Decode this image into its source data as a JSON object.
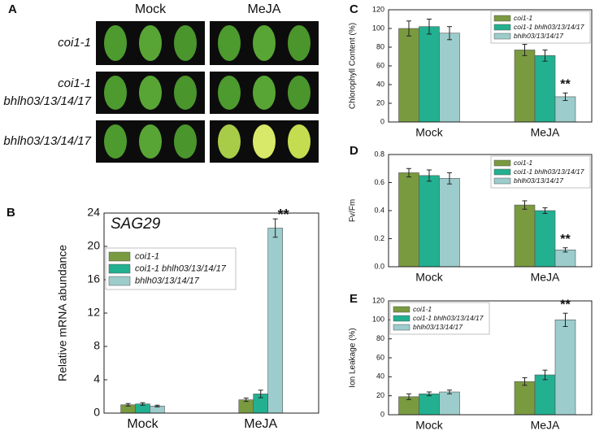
{
  "photo_panel": {
    "panel_label": "A",
    "columns": [
      "Mock",
      "MeJA"
    ],
    "rows": [
      [
        "coi1-1"
      ],
      [
        "coi1-1",
        "bhlh03/13/14/17"
      ],
      [
        "bhlh03/13/14/17"
      ]
    ]
  },
  "chart_data": [
    {
      "type": "bar",
      "panel_label": "B",
      "title": "SAG29",
      "y_label": "Relative mRNA abundance",
      "annotation": "**",
      "categories": [
        "Mock",
        "MeJA"
      ],
      "ylim": [
        0,
        24
      ],
      "yticks": [
        0,
        4,
        8,
        12,
        16,
        20,
        24
      ],
      "legend": "middle left",
      "series": [
        {
          "name": "coi1-1",
          "color": "#7a9a3f",
          "values": [
            1.0,
            1.6
          ],
          "errors": [
            0.15,
            0.2
          ]
        },
        {
          "name": "coi1-1 bhlh03/13/14/17",
          "color": "#22b090",
          "values": [
            1.1,
            2.3
          ],
          "errors": [
            0.15,
            0.45
          ]
        },
        {
          "name": "bhlh03/13/14/17",
          "color": "#9ccccc",
          "values": [
            0.85,
            22.2
          ],
          "errors": [
            0.1,
            1.1
          ]
        }
      ]
    },
    {
      "type": "bar",
      "panel_label": "C",
      "y_label": "Chlorophyll Content (%)",
      "annotation": "**",
      "categories": [
        "Mock",
        "MeJA"
      ],
      "ylim": [
        0,
        120
      ],
      "yticks": [
        0,
        20,
        40,
        60,
        80,
        100,
        120
      ],
      "legend": "upper right",
      "series": [
        {
          "name": "coi1-1",
          "color": "#7a9a3f",
          "values": [
            100,
            77
          ],
          "errors": [
            8,
            6
          ]
        },
        {
          "name": "coi1-1 bhlh03/13/14/17",
          "color": "#22b090",
          "values": [
            102,
            71
          ],
          "errors": [
            8,
            6
          ]
        },
        {
          "name": "bhlh03/13/14/17",
          "color": "#9ccccc",
          "values": [
            95,
            27
          ],
          "errors": [
            7,
            4
          ]
        }
      ]
    },
    {
      "type": "bar",
      "panel_label": "D",
      "y_label": "Fv/Fm",
      "annotation": "**",
      "categories": [
        "Mock",
        "MeJA"
      ],
      "ylim": [
        0,
        0.8
      ],
      "yticks": [
        {
          "value": 0,
          "label": "0.0"
        },
        0.2,
        0.4,
        0.6,
        0.8
      ],
      "legend": "upper right",
      "series": [
        {
          "name": "coi1-1",
          "color": "#7a9a3f",
          "values": [
            0.67,
            0.44
          ],
          "errors": [
            0.03,
            0.03
          ]
        },
        {
          "name": "coi1-1 bhlh03/13/14/17",
          "color": "#22b090",
          "values": [
            0.65,
            0.4
          ],
          "errors": [
            0.04,
            0.02
          ]
        },
        {
          "name": "bhlh03/13/14/17",
          "color": "#9ccccc",
          "values": [
            0.63,
            0.12
          ],
          "errors": [
            0.04,
            0.015
          ]
        }
      ]
    },
    {
      "type": "bar",
      "panel_label": "E",
      "y_label": "Ion Leakage (%)",
      "annotation": "**",
      "categories": [
        "Mock",
        "MeJA"
      ],
      "ylim": [
        0,
        120
      ],
      "yticks": [
        0,
        20,
        40,
        60,
        80,
        100,
        120
      ],
      "legend": "upper left",
      "series": [
        {
          "name": "coi1-1",
          "color": "#7a9a3f",
          "values": [
            19,
            35
          ],
          "errors": [
            3,
            4
          ]
        },
        {
          "name": "coi1-1 bhlh03/13/14/17",
          "color": "#22b090",
          "values": [
            22,
            42
          ],
          "errors": [
            2,
            5
          ]
        },
        {
          "name": "bhlh03/13/14/17",
          "color": "#9ccccc",
          "values": [
            24,
            100
          ],
          "errors": [
            2,
            7
          ]
        }
      ]
    }
  ]
}
